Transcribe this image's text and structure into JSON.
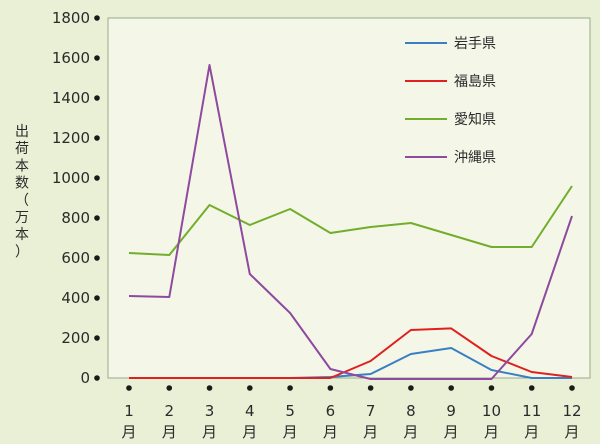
{
  "chart_data": {
    "type": "line",
    "ylabel": "出荷本数（万本）",
    "ylim": [
      0,
      1800
    ],
    "yticks": [
      "0",
      "200",
      "400",
      "600",
      "800",
      "1000",
      "1200",
      "1400",
      "1600",
      "1800"
    ],
    "categories": [
      "1月",
      "2月",
      "3月",
      "4月",
      "5月",
      "6月",
      "7月",
      "8月",
      "9月",
      "10月",
      "11月",
      "12月"
    ],
    "grid": false,
    "legend": "top-right",
    "series": [
      {
        "name": "岩手県",
        "color": "#3a7fc4",
        "values": [
          0,
          0,
          0,
          0,
          0,
          5,
          20,
          120,
          150,
          40,
          0,
          0
        ]
      },
      {
        "name": "福島県",
        "color": "#e02020",
        "values": [
          0,
          0,
          0,
          0,
          0,
          0,
          85,
          240,
          248,
          110,
          30,
          5
        ]
      },
      {
        "name": "愛知県",
        "color": "#72ad2c",
        "values": [
          625,
          615,
          865,
          765,
          845,
          725,
          755,
          775,
          715,
          655,
          655,
          960
        ]
      },
      {
        "name": "沖縄県",
        "color": "#8e4a9e",
        "values": [
          410,
          405,
          1565,
          520,
          325,
          45,
          -5,
          -5,
          -5,
          -5,
          220,
          810
        ]
      }
    ]
  }
}
